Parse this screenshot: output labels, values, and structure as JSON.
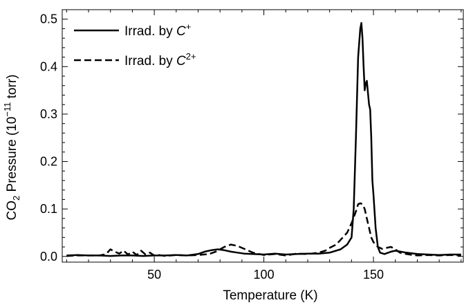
{
  "chart_data": {
    "type": "line",
    "title": "",
    "xlabel": "Temperature (K)",
    "ylabel": {
      "prefix": "CO",
      "sub": "2",
      "mid": " Pressure (10",
      "sup": "−11",
      "suffix": " torr)"
    },
    "xlim": [
      8,
      191
    ],
    "ylim": [
      -0.012,
      0.52
    ],
    "grid": false,
    "legend_position": "top-left",
    "x_ticks": [
      {
        "value": 50,
        "label": "50"
      },
      {
        "value": 100,
        "label": "100"
      },
      {
        "value": 150,
        "label": "150"
      }
    ],
    "y_ticks": [
      {
        "value": 0.0,
        "label": "0.0"
      },
      {
        "value": 0.1,
        "label": "0.1"
      },
      {
        "value": 0.2,
        "label": "0.2"
      },
      {
        "value": 0.3,
        "label": "0.3"
      },
      {
        "value": 0.4,
        "label": "0.4"
      },
      {
        "value": 0.5,
        "label": "0.5"
      }
    ],
    "series": [
      {
        "name": "Irrad. by C+",
        "legend": {
          "prefix": "Irrad. by ",
          "ion": "C",
          "charge": "+"
        },
        "style": "solid",
        "color": "#000000",
        "x": [
          10,
          15,
          20,
          25,
          30,
          35,
          40,
          45,
          50,
          55,
          60,
          65,
          70,
          73,
          76,
          79,
          82,
          85,
          88,
          91,
          95,
          100,
          105,
          110,
          115,
          120,
          125,
          130,
          135,
          138,
          140,
          141,
          142,
          143,
          144,
          144.5,
          145,
          145.5,
          146,
          146.5,
          147,
          147.5,
          148,
          148.5,
          149,
          149.5,
          150,
          151,
          152,
          153,
          155,
          158,
          160,
          165,
          170,
          175,
          180,
          185,
          190
        ],
        "y": [
          0.002,
          0.003,
          0.002,
          0.002,
          0.001,
          0.002,
          0.002,
          0.001,
          0.002,
          0.002,
          0.003,
          0.002,
          0.005,
          0.01,
          0.013,
          0.015,
          0.013,
          0.01,
          0.008,
          0.006,
          0.005,
          0.004,
          0.006,
          0.004,
          0.005,
          0.006,
          0.006,
          0.008,
          0.015,
          0.025,
          0.04,
          0.1,
          0.25,
          0.42,
          0.48,
          0.492,
          0.46,
          0.4,
          0.35,
          0.365,
          0.37,
          0.345,
          0.32,
          0.31,
          0.25,
          0.16,
          0.13,
          0.06,
          0.02,
          0.008,
          0.005,
          0.01,
          0.012,
          0.008,
          0.005,
          0.004,
          0.003,
          0.004,
          0.004
        ]
      },
      {
        "name": "Irrad. by C2+",
        "legend": {
          "prefix": "Irrad. by ",
          "ion": "C",
          "charge": "2+"
        },
        "style": "dashed",
        "color": "#000000",
        "x": [
          10,
          15,
          20,
          25,
          28,
          30,
          32,
          34,
          36,
          38,
          40,
          42,
          44,
          46,
          48,
          50,
          52,
          55,
          60,
          65,
          70,
          75,
          78,
          80,
          82,
          85,
          88,
          90,
          93,
          95,
          100,
          105,
          110,
          115,
          120,
          125,
          128,
          130,
          133,
          135,
          138,
          140,
          142,
          143,
          144,
          145,
          146,
          147,
          148,
          149,
          150,
          151,
          152,
          154,
          156,
          158,
          160,
          162,
          165,
          168,
          170,
          175,
          180,
          185,
          190
        ],
        "y": [
          0.001,
          0.002,
          0.002,
          0.002,
          0.005,
          0.015,
          0.01,
          0.006,
          0.012,
          0.004,
          0.01,
          0.003,
          0.012,
          0.004,
          0.008,
          0.002,
          0.003,
          0.001,
          0.003,
          0.002,
          0.003,
          0.005,
          0.01,
          0.015,
          0.02,
          0.025,
          0.022,
          0.018,
          0.012,
          0.008,
          0.003,
          0.005,
          0.002,
          0.006,
          0.005,
          0.008,
          0.012,
          0.018,
          0.025,
          0.035,
          0.05,
          0.07,
          0.095,
          0.11,
          0.112,
          0.11,
          0.1,
          0.08,
          0.06,
          0.04,
          0.03,
          0.025,
          0.02,
          0.016,
          0.018,
          0.02,
          0.015,
          0.008,
          0.005,
          0.003,
          0.002,
          0.003,
          0.002,
          0.003,
          0.002
        ]
      }
    ]
  }
}
